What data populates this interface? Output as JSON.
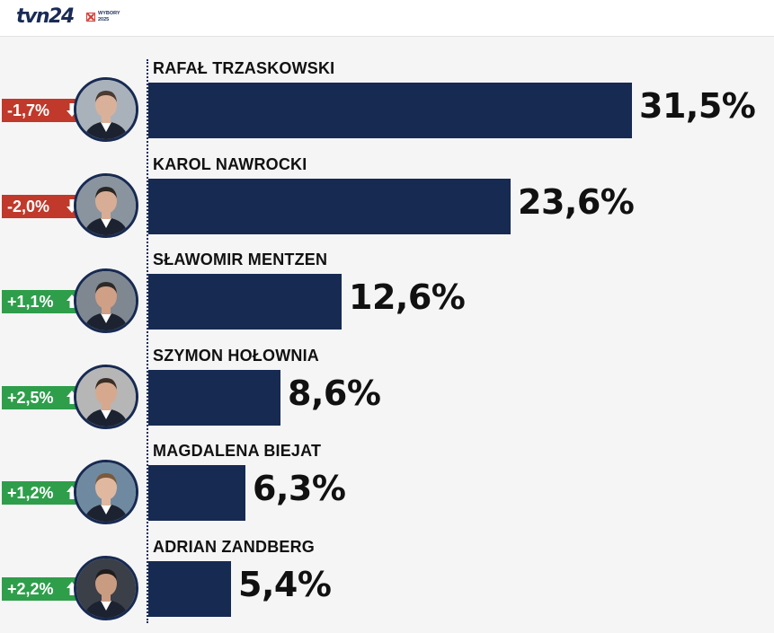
{
  "header": {
    "logo_text": "tvn24",
    "badge_line1": "WYBORY",
    "badge_line2": "2025"
  },
  "colors": {
    "bar": "#172a52",
    "down": "#c0392b",
    "up": "#2e9e4a",
    "background": "#f5f5f5"
  },
  "chart_data": {
    "type": "bar",
    "orientation": "horizontal",
    "categories": [
      "RAFAŁ TRZASKOWSKI",
      "KAROL NAWROCKI",
      "SŁAWOMIR MENTZEN",
      "SZYMON HOŁOWNIA",
      "MAGDALENA BIEJAT",
      "ADRIAN ZANDBERG"
    ],
    "values": [
      31.5,
      23.6,
      12.6,
      8.6,
      6.3,
      5.4
    ],
    "value_labels": [
      "31,5%",
      "23,6%",
      "12,6%",
      "8,6%",
      "6,3%",
      "5,4%"
    ],
    "changes": [
      "-1,7%",
      "-2,0%",
      "+1,1%",
      "+2,5%",
      "+1,2%",
      "+2,2%"
    ],
    "change_direction": [
      "down",
      "down",
      "up",
      "up",
      "up",
      "up"
    ],
    "scale_max": 31.5
  }
}
